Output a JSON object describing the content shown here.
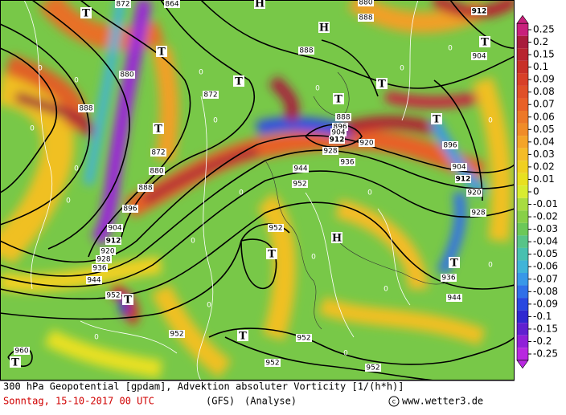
{
  "map": {
    "contour_labels": [
      872,
      864,
      880,
      888,
      912,
      904,
      872,
      880,
      888,
      888,
      872,
      880,
      888,
      896,
      904,
      912,
      920,
      928,
      936,
      944,
      952,
      952,
      952,
      952,
      952,
      960,
      888,
      896,
      904,
      912,
      920,
      928,
      936,
      944,
      952,
      952,
      896,
      904,
      912,
      920,
      928,
      936,
      944
    ],
    "centers": [
      "T",
      "H",
      "H",
      "T",
      "T",
      "T",
      "T",
      "T",
      "T",
      "T",
      "H",
      "T",
      "T",
      "T",
      "T",
      "T"
    ],
    "vorticity_labels": [
      "0",
      "0",
      "0",
      "0",
      "0",
      "0",
      "0",
      "0",
      "0",
      "0",
      "0",
      "0",
      "0",
      "0",
      "0",
      "0",
      "0",
      "0",
      "0",
      "0"
    ]
  },
  "colorbar": {
    "ticks": [
      0.25,
      0.2,
      0.15,
      0.1,
      0.09,
      0.08,
      0.07,
      0.06,
      0.05,
      0.04,
      0.03,
      0.02,
      0.01,
      0,
      -0.01,
      -0.02,
      -0.03,
      -0.04,
      -0.05,
      -0.06,
      -0.07,
      -0.08,
      -0.09,
      -0.1,
      -0.15,
      -0.2,
      -0.25
    ],
    "colors": [
      "#c8207c",
      "#a81c3c",
      "#b82430",
      "#c83028",
      "#d84028",
      "#e05028",
      "#e86028",
      "#ec7828",
      "#f08c28",
      "#f4a428",
      "#f4bc28",
      "#f0d020",
      "#e8e020",
      "#d8ec30",
      "#a8dc40",
      "#88d048",
      "#6cc858",
      "#58c488",
      "#48c0b0",
      "#40b4d8",
      "#3898e8",
      "#3070e8",
      "#2848e0",
      "#3028d0",
      "#6020d0",
      "#9020d8",
      "#b828e0"
    ]
  },
  "footer": {
    "title": "300 hPa Geopotential [gpdam], Advektion absoluter Vorticity [1/(h*h)]",
    "date": "Sonntag, 15-10-2017  00 UTC",
    "model": "(GFS)",
    "run": "(Analyse)",
    "site": "www.wetter3.de"
  }
}
